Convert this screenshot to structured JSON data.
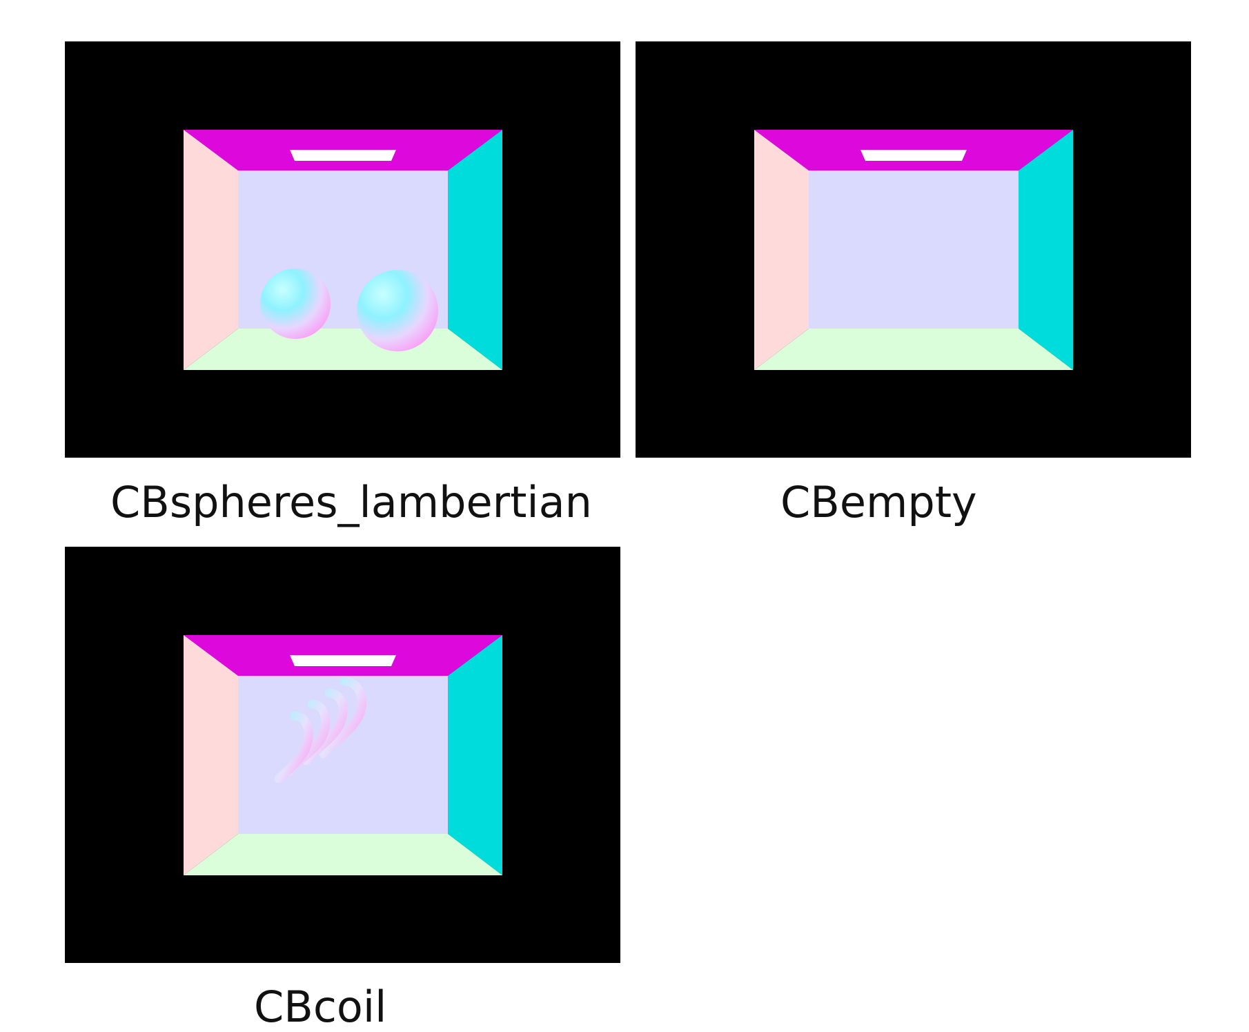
{
  "panels": [
    {
      "caption": "CBspheres_lambertian",
      "objects": "spheres"
    },
    {
      "caption": "CBempty",
      "objects": "none"
    },
    {
      "caption": "CBcoil",
      "objects": "coil"
    }
  ],
  "colors": {
    "background": "#000000",
    "ceiling": "#dc08dc",
    "left_wall": "#fedadb",
    "back_wall": "#dad9fe",
    "right_wall": "#00dcdc",
    "floor": "#dafed9",
    "light": "#ffffff"
  }
}
